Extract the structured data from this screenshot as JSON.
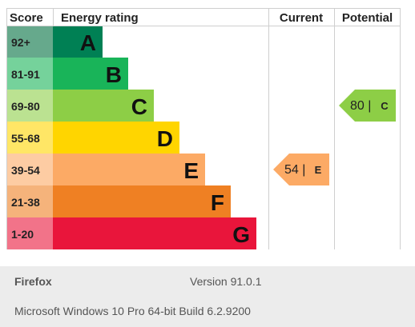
{
  "chart_data": {
    "type": "table",
    "headers": {
      "score": "Score",
      "rating": "Energy rating",
      "current": "Current",
      "potential": "Potential"
    },
    "bands": [
      {
        "score": "92+",
        "letter": "A",
        "color": "#008054",
        "score_bg": "#66a98c"
      },
      {
        "score": "81-91",
        "letter": "B",
        "color": "#19b459",
        "score_bg": "#75d29b"
      },
      {
        "score": "69-80",
        "letter": "C",
        "color": "#8dce46",
        "score_bg": "#bbe291"
      },
      {
        "score": "55-68",
        "letter": "D",
        "color": "#ffd500",
        "score_bg": "#ffe666"
      },
      {
        "score": "39-54",
        "letter": "E",
        "color": "#fcaa65",
        "score_bg": "#fdcca3"
      },
      {
        "score": "21-38",
        "letter": "F",
        "color": "#ef8023",
        "score_bg": "#f5b37b"
      },
      {
        "score": "1-20",
        "letter": "G",
        "color": "#e9153b",
        "score_bg": "#f27389"
      }
    ],
    "current": {
      "value": 54,
      "letter": "E",
      "display": "54 |",
      "band_index": 4,
      "color": "#fcaa65"
    },
    "potential": {
      "value": 80,
      "letter": "C",
      "display": "80 |",
      "band_index": 2,
      "color": "#8dce46"
    }
  },
  "footer": {
    "browser": "Firefox",
    "version": "Version 91.0.1",
    "os": "Microsoft Windows 10 Pro 64-bit Build 6.2.9200"
  }
}
